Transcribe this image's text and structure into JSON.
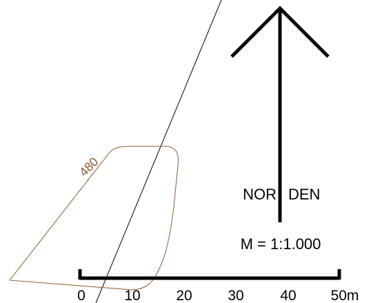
{
  "map": {
    "contour": {
      "label": "480",
      "color": "#8B5A2B"
    },
    "north_arrow": {
      "label_left": "NOR",
      "label_right": "DEN"
    },
    "scale": {
      "text": "M = 1:1.000",
      "ticks": [
        "0",
        "10",
        "20",
        "30",
        "40",
        "50m"
      ]
    }
  }
}
